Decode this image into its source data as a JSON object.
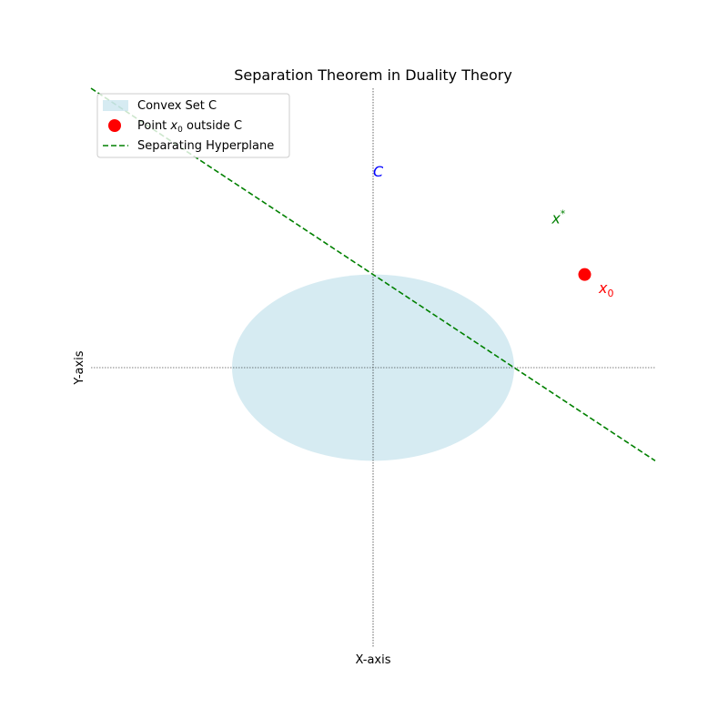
{
  "chart_data": {
    "type": "scatter",
    "title": "Separation Theorem in Duality Theory",
    "xlabel": "X-axis",
    "ylabel": "Y-axis",
    "xlim": [
      -3,
      3
    ],
    "ylim": [
      -3,
      3
    ],
    "grid": false,
    "legend_position": "upper-left",
    "reference_lines": [
      {
        "orientation": "horizontal",
        "value": 0,
        "style": "dotted",
        "color": "#000000"
      },
      {
        "orientation": "vertical",
        "value": 0,
        "style": "dotted",
        "color": "#000000"
      }
    ],
    "convex_set": {
      "name": "Convex Set C",
      "shape": "ellipse",
      "center": [
        0,
        0
      ],
      "semi_axis_x": 1.5,
      "semi_axis_y": 1,
      "color": "#add8e6",
      "opacity": 0.5
    },
    "point": {
      "name": "Point x0 outside C",
      "legend_base": "Point ",
      "legend_symbol": "x",
      "legend_subscript": "0",
      "legend_rest": " outside C",
      "x": 2.25,
      "y": 1,
      "color": "#ff0000"
    },
    "hyperplane": {
      "name": "Separating Hyperplane",
      "slope": -0.6667,
      "intercept": 1,
      "x_range": [
        -3,
        3
      ],
      "color": "#008000",
      "style": "dashed"
    },
    "annotations": [
      {
        "id": "c",
        "symbol": "C",
        "sub": "",
        "sup": "",
        "x": 0,
        "y": 2.05,
        "color": "#0000ff"
      },
      {
        "id": "xstar",
        "symbol": "x",
        "sub": "",
        "sup": "*",
        "x": 1.9,
        "y": 1.55,
        "color": "#008000"
      },
      {
        "id": "x0",
        "symbol": "x",
        "sub": "0",
        "sup": "",
        "x": 2.4,
        "y": 0.8,
        "color": "#ff0000"
      }
    ]
  }
}
